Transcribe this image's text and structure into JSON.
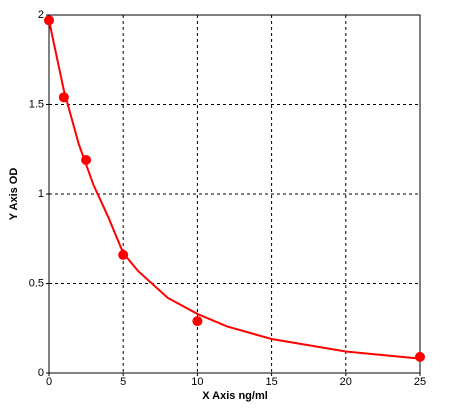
{
  "chart_data": {
    "type": "scatter",
    "x_label": "X Axis ng/ml",
    "y_label": "Y Axis OD",
    "x": [
      0,
      1,
      2.5,
      5,
      10,
      25
    ],
    "values": [
      1.97,
      1.54,
      1.19,
      0.66,
      0.29,
      0.09
    ],
    "color": "#ff0000",
    "curve": {
      "x": [
        0,
        1,
        2,
        3,
        4,
        5,
        6,
        8,
        10,
        12,
        15,
        20,
        25
      ],
      "values": [
        1.97,
        1.58,
        1.28,
        1.05,
        0.87,
        0.67,
        0.57,
        0.42,
        0.33,
        0.26,
        0.19,
        0.12,
        0.08
      ]
    },
    "xlim": [
      0,
      25
    ],
    "xticks": [
      0,
      5,
      10,
      15,
      20,
      25
    ],
    "ylim": [
      0,
      2
    ],
    "yticks": [
      0,
      0.5,
      1,
      1.5,
      2
    ],
    "grid": true
  }
}
